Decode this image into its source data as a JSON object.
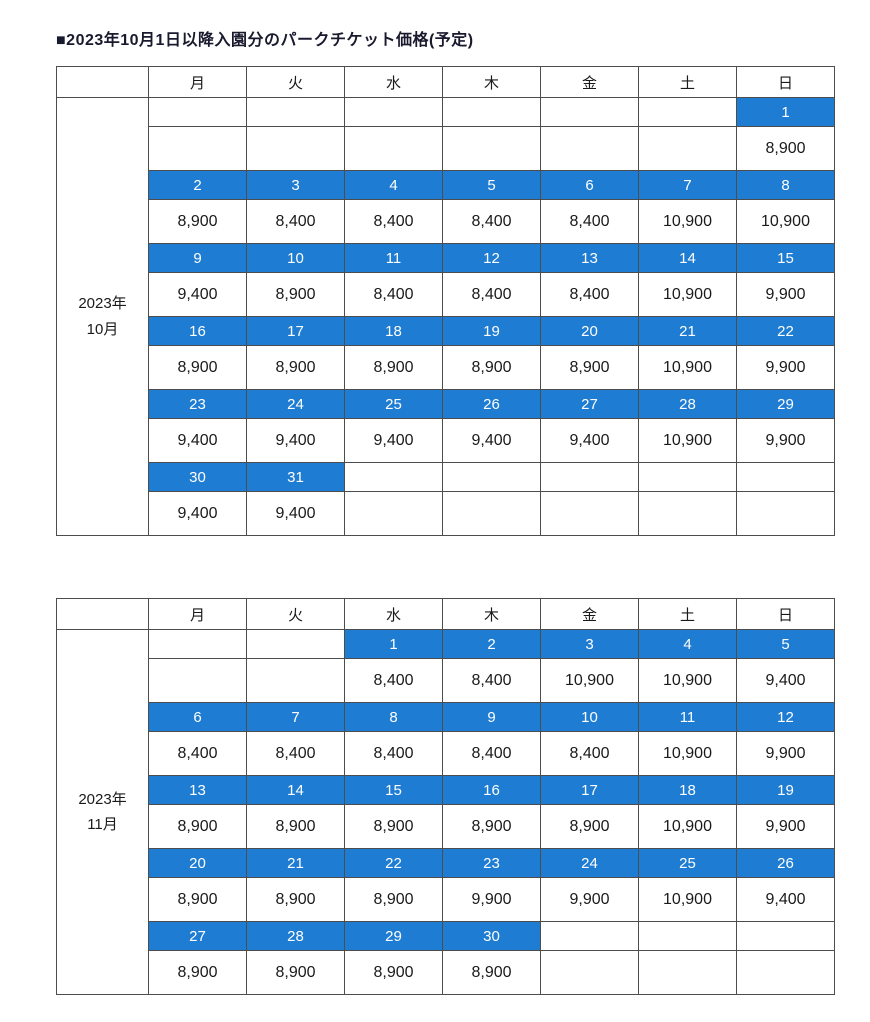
{
  "title": "■2023年10月1日以降入園分のパークチケット価格(予定)",
  "weekdays": [
    "月",
    "火",
    "水",
    "木",
    "金",
    "土",
    "日"
  ],
  "colors": {
    "highlight_blue": "#1e7cd2",
    "border": "#4d4d4d",
    "title_color": "#1a1a2e"
  },
  "tables": [
    {
      "month_line1": "2023年",
      "month_line2": "10月",
      "weeks": [
        {
          "dates": [
            "",
            "",
            "",
            "",
            "",
            "",
            "1"
          ],
          "prices": [
            "",
            "",
            "",
            "",
            "",
            "",
            "8,900"
          ]
        },
        {
          "dates": [
            "2",
            "3",
            "4",
            "5",
            "6",
            "7",
            "8"
          ],
          "prices": [
            "8,900",
            "8,400",
            "8,400",
            "8,400",
            "8,400",
            "10,900",
            "10,900"
          ]
        },
        {
          "dates": [
            "9",
            "10",
            "11",
            "12",
            "13",
            "14",
            "15"
          ],
          "prices": [
            "9,400",
            "8,900",
            "8,400",
            "8,400",
            "8,400",
            "10,900",
            "9,900"
          ]
        },
        {
          "dates": [
            "16",
            "17",
            "18",
            "19",
            "20",
            "21",
            "22"
          ],
          "prices": [
            "8,900",
            "8,900",
            "8,900",
            "8,900",
            "8,900",
            "10,900",
            "9,900"
          ]
        },
        {
          "dates": [
            "23",
            "24",
            "25",
            "26",
            "27",
            "28",
            "29"
          ],
          "prices": [
            "9,400",
            "9,400",
            "9,400",
            "9,400",
            "9,400",
            "10,900",
            "9,900"
          ]
        },
        {
          "dates": [
            "30",
            "31",
            "",
            "",
            "",
            "",
            ""
          ],
          "prices": [
            "9,400",
            "9,400",
            "",
            "",
            "",
            "",
            ""
          ]
        }
      ]
    },
    {
      "month_line1": "2023年",
      "month_line2": "11月",
      "weeks": [
        {
          "dates": [
            "",
            "",
            "1",
            "2",
            "3",
            "4",
            "5"
          ],
          "prices": [
            "",
            "",
            "8,400",
            "8,400",
            "10,900",
            "10,900",
            "9,400"
          ]
        },
        {
          "dates": [
            "6",
            "7",
            "8",
            "9",
            "10",
            "11",
            "12"
          ],
          "prices": [
            "8,400",
            "8,400",
            "8,400",
            "8,400",
            "8,400",
            "10,900",
            "9,900"
          ]
        },
        {
          "dates": [
            "13",
            "14",
            "15",
            "16",
            "17",
            "18",
            "19"
          ],
          "prices": [
            "8,900",
            "8,900",
            "8,900",
            "8,900",
            "8,900",
            "10,900",
            "9,900"
          ]
        },
        {
          "dates": [
            "20",
            "21",
            "22",
            "23",
            "24",
            "25",
            "26"
          ],
          "prices": [
            "8,900",
            "8,900",
            "8,900",
            "9,900",
            "9,900",
            "10,900",
            "9,400"
          ]
        },
        {
          "dates": [
            "27",
            "28",
            "29",
            "30",
            "",
            "",
            ""
          ],
          "prices": [
            "8,900",
            "8,900",
            "8,900",
            "8,900",
            "",
            "",
            ""
          ]
        }
      ]
    }
  ]
}
